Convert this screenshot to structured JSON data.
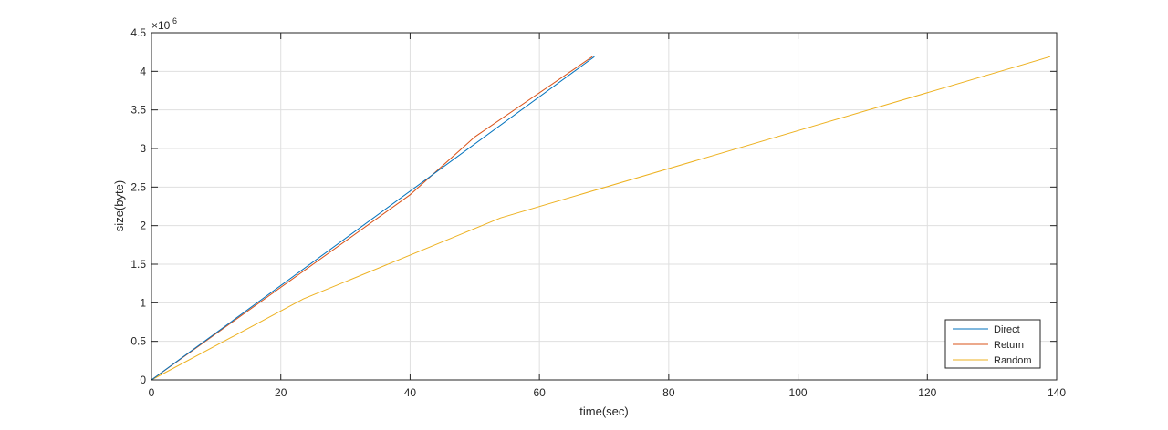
{
  "chart_data": {
    "type": "line",
    "xlabel": "time(sec)",
    "ylabel": "size(byte)",
    "y_exponent_base": "×10",
    "y_exponent_power": "6",
    "xlim": [
      0,
      140
    ],
    "ylim": [
      0,
      4.5
    ],
    "x_ticks": [
      0,
      20,
      40,
      60,
      80,
      100,
      120,
      140
    ],
    "y_ticks": [
      0,
      0.5,
      1,
      1.5,
      2,
      2.5,
      3,
      3.5,
      4,
      4.5
    ],
    "x_tick_labels": [
      "0",
      "20",
      "40",
      "60",
      "80",
      "100",
      "120",
      "140"
    ],
    "y_tick_labels": [
      "0",
      "0.5",
      "1",
      "1.5",
      "2",
      "2.5",
      "3",
      "3.5",
      "4",
      "4.5"
    ],
    "grid": true,
    "legend_position": "bottom-right",
    "series": [
      {
        "name": "Direct",
        "color": "#0072BD",
        "points": [
          [
            0,
            0
          ],
          [
            68.5,
            4.19
          ]
        ]
      },
      {
        "name": "Return",
        "color": "#D95319",
        "points": [
          [
            0,
            0
          ],
          [
            40,
            2.4
          ],
          [
            50,
            3.15
          ],
          [
            68.2,
            4.19
          ]
        ]
      },
      {
        "name": "Random",
        "color": "#EDB120",
        "points": [
          [
            0,
            0
          ],
          [
            23.5,
            1.05
          ],
          [
            54,
            2.1
          ],
          [
            139,
            4.19
          ]
        ]
      }
    ]
  }
}
